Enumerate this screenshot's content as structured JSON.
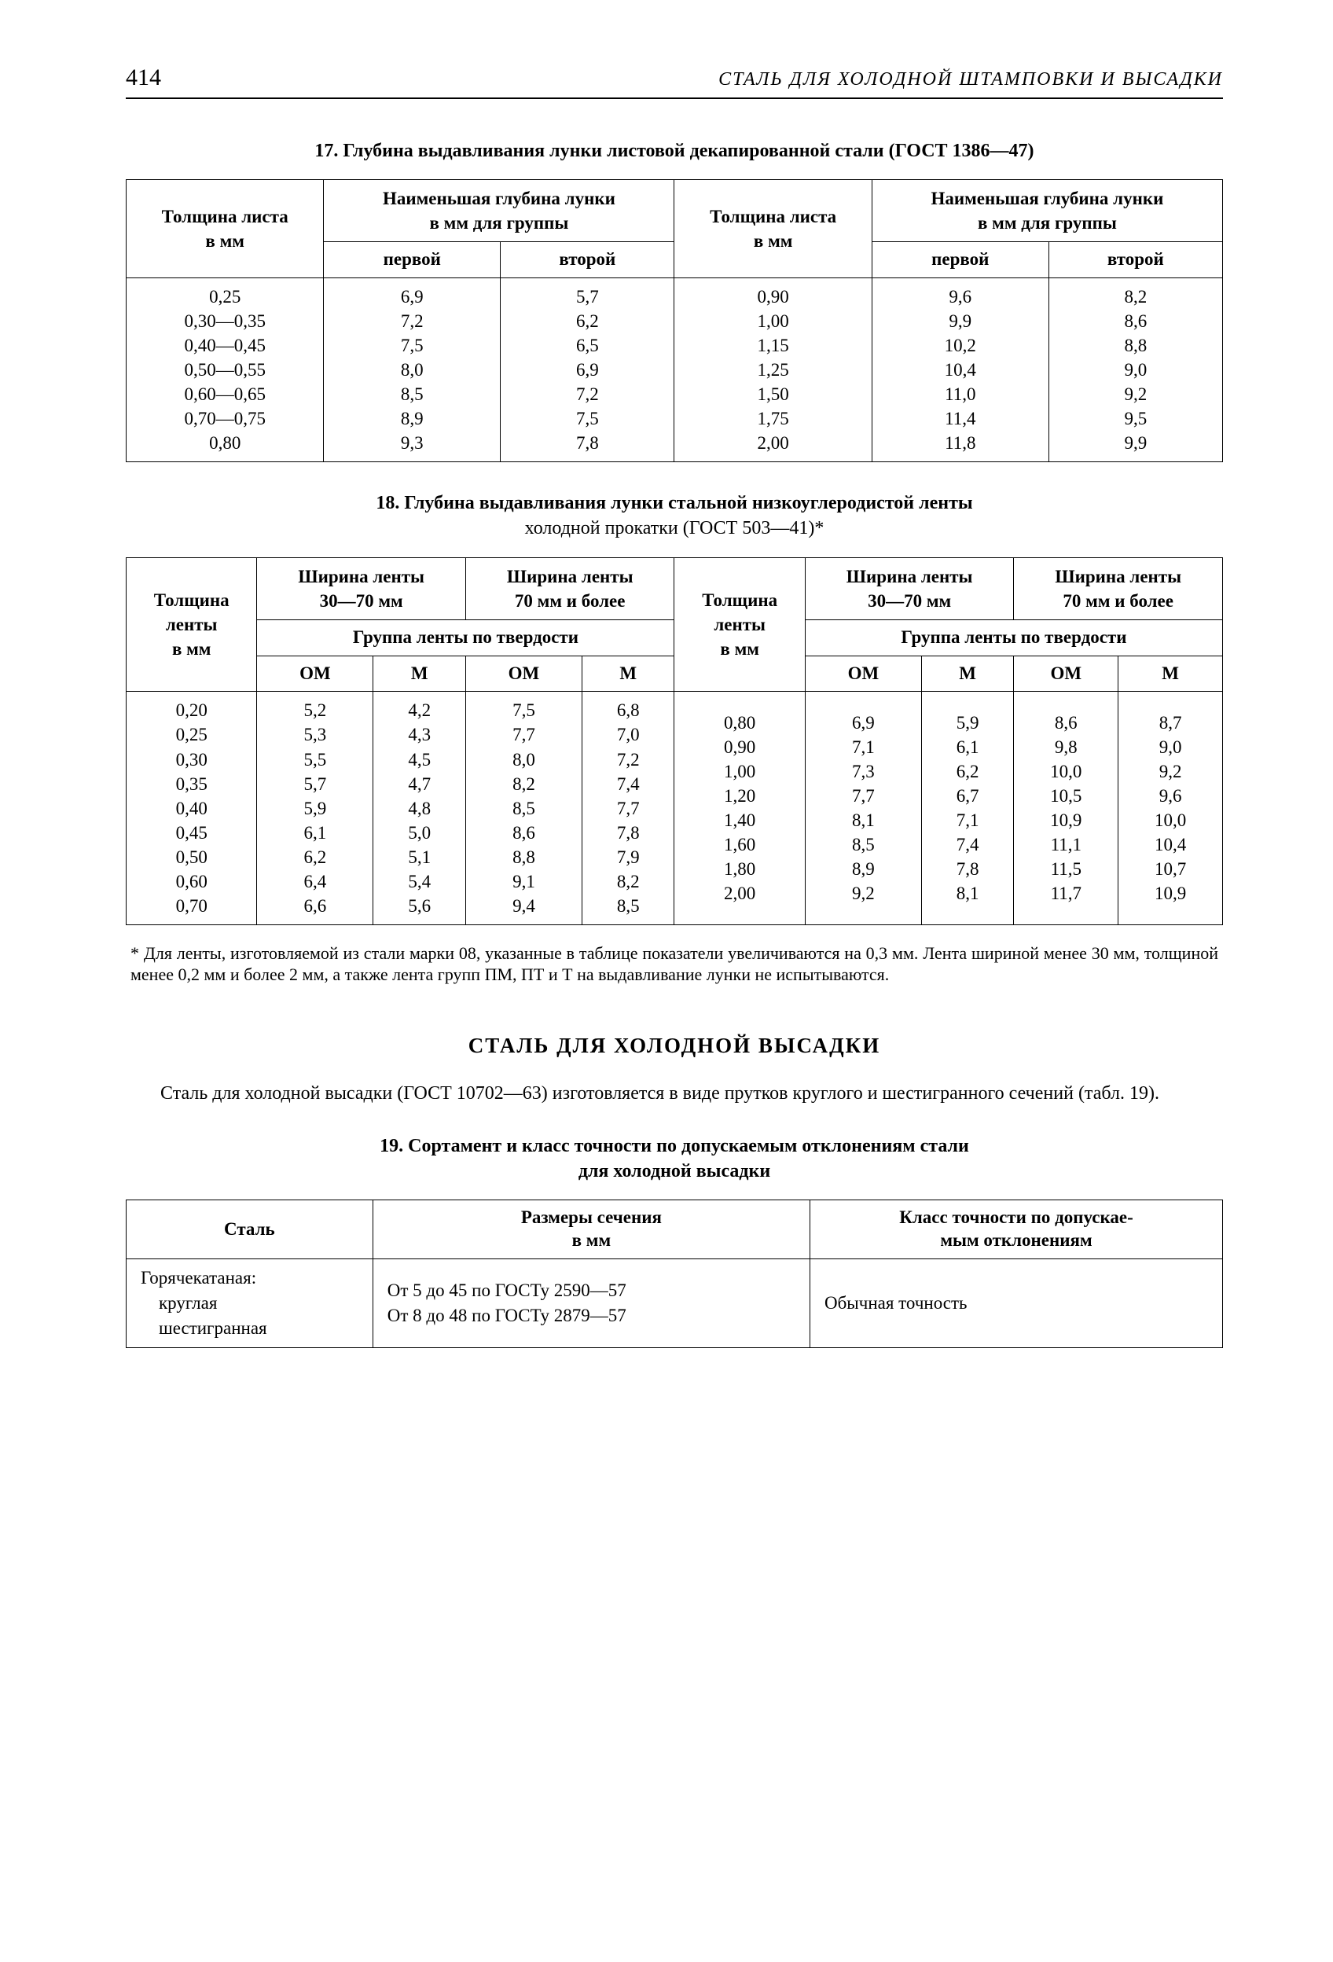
{
  "page": {
    "number": "414",
    "running_title": "СТАЛЬ ДЛЯ ХОЛОДНОЙ ШТАМПОВКИ И ВЫСАДКИ"
  },
  "table17": {
    "caption": "17. Глубина выдавливания лунки листовой декапированной стали  (ГОСТ 1386—47)",
    "h_thickness": "Толщина листа\nв мм",
    "h_min_depth": "Наименьшая глубина лунки\nв мм для группы",
    "h_first": "первой",
    "h_second": "второй",
    "left_col1": "0,25\n0,30—0,35\n0,40—0,45\n0,50—0,55\n0,60—0,65\n0,70—0,75\n0,80",
    "left_col2": "6,9\n7,2\n7,5\n8,0\n8,5\n8,9\n9,3",
    "left_col3": "5,7\n6,2\n6,5\n6,9\n7,2\n7,5\n7,8",
    "right_col1": "0,90\n1,00\n1,15\n1,25\n1,50\n1,75\n2,00",
    "right_col2": "9,6\n9,9\n10,2\n10,4\n11,0\n11,4\n11,8",
    "right_col3": "8,2\n8,6\n8,8\n9,0\n9,2\n9,5\n9,9"
  },
  "table18": {
    "caption_line1": "18. Глубина выдавливания лунки стальной низкоуглеродистой ленты",
    "caption_line2": "холодной прокатки (ГОСТ 503—41)*",
    "h_thickness": "Толщина\nленты\nв мм",
    "h_width_a": "Ширина ленты\n30—70 мм",
    "h_width_b": "Ширина ленты\n70 мм и более",
    "h_group": "Группа ленты по твердости",
    "h_om": "ОМ",
    "h_m": "М",
    "left_col_thk": "0,20\n0,25\n0,30\n0,35\n0,40\n0,45\n0,50\n0,60\n0,70",
    "left_a_om": "5,2\n5,3\n5,5\n5,7\n5,9\n6,1\n6,2\n6,4\n6,6",
    "left_a_m": "4,2\n4,3\n4,5\n4,7\n4,8\n5,0\n5,1\n5,4\n5,6",
    "left_b_om": "7,5\n7,7\n8,0\n8,2\n8,5\n8,6\n8,8\n9,1\n9,4",
    "left_b_m": "6,8\n7,0\n7,2\n7,4\n7,7\n7,8\n7,9\n8,2\n8,5",
    "right_col_thk": "0,80\n0,90\n1,00\n1,20\n1,40\n1,60\n1,80\n2,00",
    "right_a_om": "6,9\n7,1\n7,3\n7,7\n8,1\n8,5\n8,9\n9,2",
    "right_a_m": "5,9\n6,1\n6,2\n6,7\n7,1\n7,4\n7,8\n8,1",
    "right_b_om": "8,6\n9,8\n10,0\n10,5\n10,9\n11,1\n11,5\n11,7",
    "right_b_m": "8,7\n9,0\n9,2\n9,6\n10,0\n10,4\n10,7\n10,9",
    "footnote": "* Для ленты, изготовляемой из стали марки 08, указанные в таблице показатели увеличиваются на 0,3 мм. Лента шириной менее 30 мм, толщиной менее 0,2 мм и более 2 мм, а также лента групп ПМ, ПТ и Т на выдавливание лунки не испытываются."
  },
  "section": {
    "title": "СТАЛЬ ДЛЯ ХОЛОДНОЙ ВЫСАДКИ",
    "para": "Сталь для холодной высадки (ГОСТ 10702—63) изготовляется в виде прутков круглого и шестигранного сечений (табл. 19)."
  },
  "table19": {
    "caption_line1": "19. Сортамент и класс точности по допускаемым отклонениям стали",
    "caption_line2": "для холодной высадки",
    "h_steel": "Сталь",
    "h_dims": "Размеры сечения\nв мм",
    "h_class": "Класс точности по допускае-\nмым отклонениям",
    "row1_steel": "Горячекатаная:\n    круглая\n    шестигранная",
    "row1_dims": "От 5 до 45 по ГОСТу 2590—57\nОт 8 до 48 по ГОСТу 2879—57",
    "row1_class": "Обычная точность"
  }
}
